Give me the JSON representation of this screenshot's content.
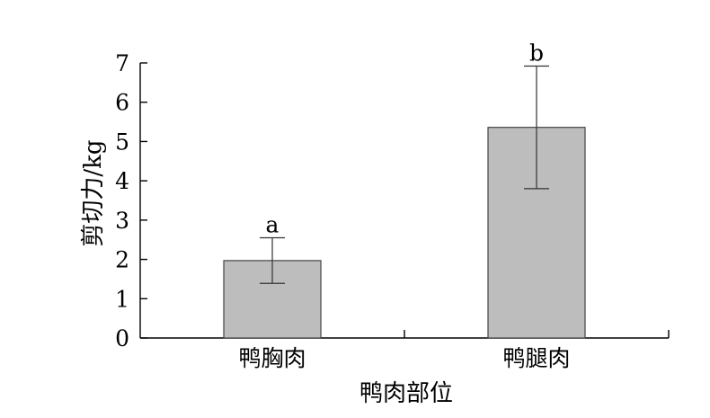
{
  "chart_data": {
    "type": "bar",
    "categories": [
      "鸭胸肉",
      "鸭腿肉"
    ],
    "values": [
      1.97,
      5.36
    ],
    "errors": [
      0.58,
      1.56
    ],
    "significance": [
      "a",
      "b"
    ],
    "title": "",
    "xlabel": "鸭肉部位",
    "ylabel": "剪切力/kg",
    "ylim": [
      0,
      7
    ],
    "yticks": [
      0,
      1,
      2,
      3,
      4,
      5,
      6,
      7
    ],
    "grid": false,
    "bar_color": "#bdbdbd",
    "bar_edge_color": "#444444"
  }
}
